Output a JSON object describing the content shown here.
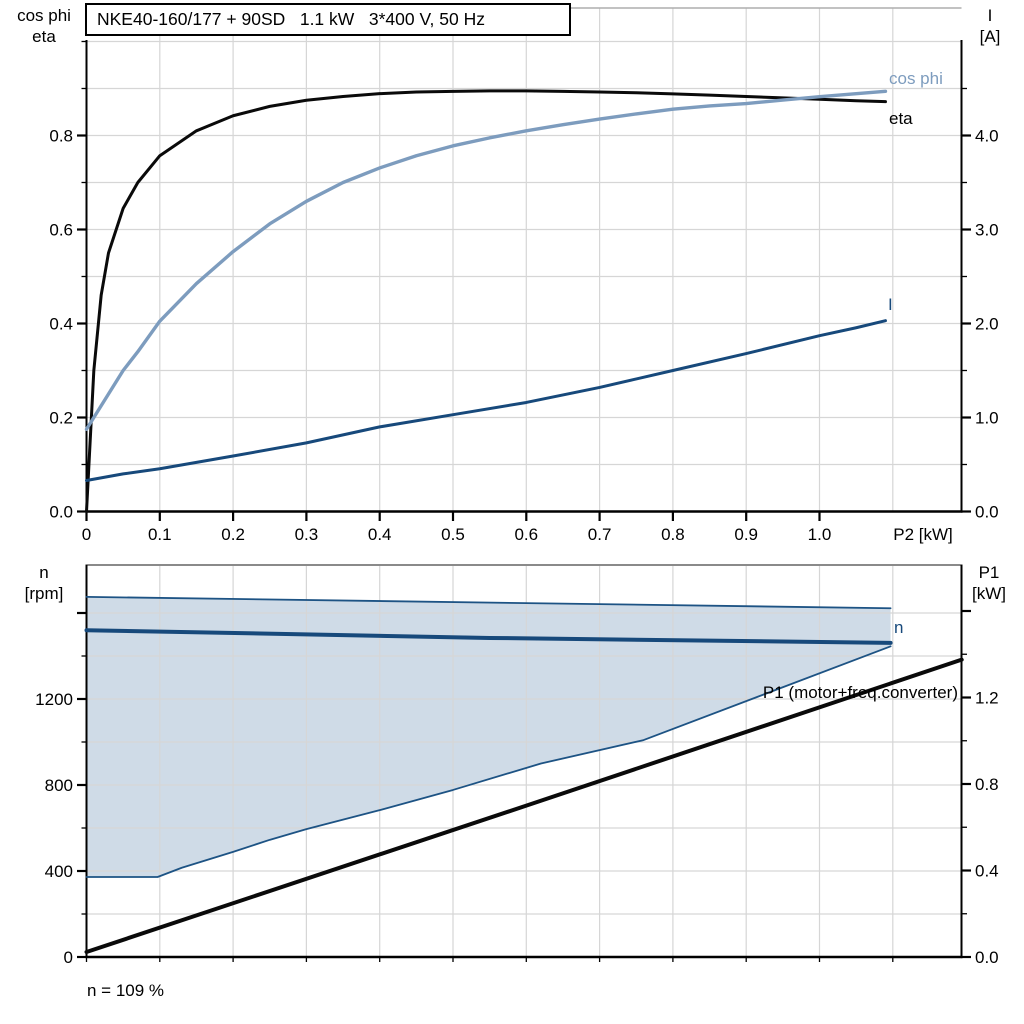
{
  "colors": {
    "eta": "#0a0a0a",
    "cos_phi": "#7d9cbe",
    "current": "#17497b",
    "band_fill": "#cfdbe7",
    "band_edge": "#1d5384",
    "grid": "#d6d6d6",
    "border_gray": "#8a8a8a",
    "axis": "#000000"
  },
  "chart_data": [
    {
      "type": "line",
      "title": "NKE40-160/177 + 90SD   1.1 kW   3*400 V, 50 Hz",
      "xlabel": "P2 [kW]",
      "x_axis": {
        "tick_labels": [
          "0",
          "0.1",
          "0.2",
          "0.3",
          "0.4",
          "0.5",
          "0.6",
          "0.7",
          "0.8",
          "0.9",
          "1.0"
        ],
        "tick_values": [
          0,
          0.1,
          0.2,
          0.3,
          0.4,
          0.5,
          0.6,
          0.7,
          0.8,
          0.9,
          1.0
        ],
        "range": [
          0,
          1.194
        ],
        "grid_step": 0.1
      },
      "left_axis": {
        "title_lines": [
          "cos phi",
          "eta"
        ],
        "tick_labels": [
          "0.0",
          "0.2",
          "0.4",
          "0.6",
          "0.8"
        ],
        "tick_values": [
          0,
          0.2,
          0.4,
          0.6,
          0.8
        ],
        "minor_ticks": [
          0.1,
          0.3,
          0.5,
          0.7,
          0.9,
          1.0
        ],
        "range": [
          0,
          1.072
        ]
      },
      "right_axis": {
        "title_lines": [
          "I",
          "[A]"
        ],
        "tick_labels": [
          "0.0",
          "1.0",
          "2.0",
          "3.0",
          "4.0"
        ],
        "tick_values": [
          0,
          1,
          2,
          3,
          4
        ],
        "minor_ticks": [
          0.5,
          1.5,
          2.5,
          3.5,
          4.5
        ],
        "range": [
          0,
          5.36
        ]
      },
      "series": [
        {
          "name": "eta",
          "label": "eta",
          "axis": "left",
          "x": [
            0,
            0.01,
            0.02,
            0.03,
            0.05,
            0.07,
            0.1,
            0.15,
            0.2,
            0.25,
            0.3,
            0.35,
            0.4,
            0.45,
            0.5,
            0.55,
            0.6,
            0.65,
            0.7,
            0.75,
            0.8,
            0.85,
            0.9,
            0.95,
            1.0,
            1.05,
            1.09
          ],
          "values": [
            0,
            0.3,
            0.46,
            0.55,
            0.645,
            0.7,
            0.757,
            0.81,
            0.842,
            0.862,
            0.875,
            0.883,
            0.889,
            0.8925,
            0.894,
            0.895,
            0.895,
            0.894,
            0.8925,
            0.891,
            0.8885,
            0.886,
            0.883,
            0.88,
            0.877,
            0.874,
            0.872
          ]
        },
        {
          "name": "cos phi",
          "label": "cos phi",
          "axis": "left",
          "x": [
            0,
            0.01,
            0.02,
            0.03,
            0.05,
            0.07,
            0.1,
            0.15,
            0.2,
            0.25,
            0.3,
            0.35,
            0.4,
            0.45,
            0.5,
            0.55,
            0.6,
            0.65,
            0.7,
            0.75,
            0.8,
            0.85,
            0.9,
            0.95,
            1.0,
            1.05,
            1.09
          ],
          "values": [
            0.175,
            0.2,
            0.225,
            0.25,
            0.3,
            0.34,
            0.405,
            0.485,
            0.553,
            0.612,
            0.66,
            0.7,
            0.731,
            0.757,
            0.778,
            0.795,
            0.81,
            0.823,
            0.835,
            0.846,
            0.856,
            0.863,
            0.868,
            0.8755,
            0.8825,
            0.889,
            0.894
          ]
        },
        {
          "name": "I",
          "label": "I",
          "axis": "right",
          "x": [
            0,
            0.05,
            0.1,
            0.2,
            0.3,
            0.4,
            0.5,
            0.6,
            0.7,
            0.8,
            0.9,
            1.0,
            1.05,
            1.09
          ],
          "values": [
            0.33,
            0.4,
            0.455,
            0.59,
            0.73,
            0.9,
            1.03,
            1.16,
            1.32,
            1.5,
            1.68,
            1.87,
            1.955,
            2.03
          ]
        }
      ]
    },
    {
      "type": "area+line",
      "xlabel": "",
      "x_axis": {
        "tick_labels": [],
        "tick_values": [
          0,
          0.1,
          0.2,
          0.3,
          0.4,
          0.5,
          0.6,
          0.7,
          0.8,
          0.9,
          1.0,
          1.1
        ],
        "range": [
          0,
          1.194
        ],
        "grid_step": 0.1
      },
      "left_axis": {
        "title_lines": [
          "n",
          "[rpm]"
        ],
        "tick_labels": [
          "0",
          "400",
          "800",
          "1200"
        ],
        "tick_values": [
          0,
          400,
          800,
          1200
        ],
        "minor_ticks": [
          200,
          600,
          1000,
          1400
        ],
        "extra_major_ticks": [
          1600
        ],
        "range": [
          0,
          1823
        ]
      },
      "right_axis": {
        "title_lines": [
          "P1",
          "[kW]"
        ],
        "tick_labels": [
          "0.0",
          "0.4",
          "0.8",
          "1.2"
        ],
        "tick_values": [
          0,
          0.4,
          0.8,
          1.2
        ],
        "minor_ticks": [
          0.2,
          0.6,
          1.0,
          1.4
        ],
        "extra_major_ticks": [
          1.6
        ],
        "range": [
          0,
          1.814
        ]
      },
      "band": {
        "name": "speed-operating-range",
        "upper": [
          [
            0,
            1675
          ],
          [
            1.097,
            1622
          ]
        ],
        "lower": [
          [
            0,
            372
          ],
          [
            0.097,
            372
          ],
          [
            0.13,
            415
          ],
          [
            0.2,
            489
          ],
          [
            0.25,
            545
          ],
          [
            0.3,
            595
          ],
          [
            0.4,
            683
          ],
          [
            0.5,
            777
          ],
          [
            0.62,
            900
          ],
          [
            0.76,
            1009
          ],
          [
            1.097,
            1445
          ]
        ]
      },
      "series": [
        {
          "name": "n",
          "label": "n",
          "axis": "left",
          "x": [
            0,
            0.55,
            1.097
          ],
          "values": [
            1520,
            1484,
            1461
          ]
        },
        {
          "name": "P1",
          "label": "P1 (motor+freq.converter)",
          "axis": "right",
          "x": [
            0,
            0.6,
            1.194
          ],
          "values": [
            0.023,
            0.7,
            1.375
          ]
        }
      ],
      "footnote": "n = 109 %"
    }
  ]
}
